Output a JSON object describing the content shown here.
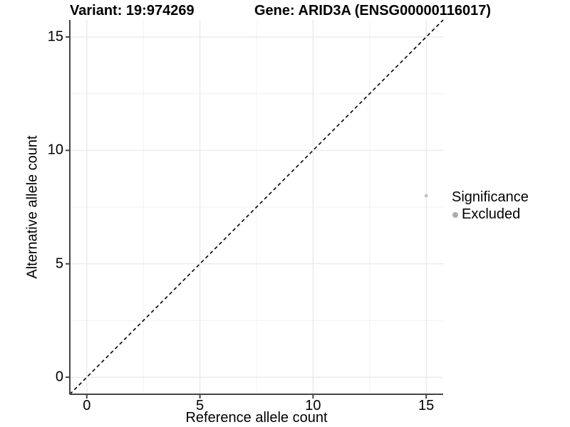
{
  "titles": {
    "variant": "Variant: 19:974269",
    "gene": "Gene: ARID3A (ENSG00000116017)"
  },
  "chart_data": {
    "type": "scatter",
    "xlabel": "Reference allele count",
    "ylabel": "Alternative allele count",
    "xlim": [
      -0.75,
      15.75
    ],
    "ylim": [
      -0.75,
      15.75
    ],
    "x_major_ticks": [
      0,
      5,
      10,
      15
    ],
    "y_major_ticks": [
      0,
      5,
      10,
      15
    ],
    "x_minor_ticks": [
      2.5,
      7.5,
      12.5
    ],
    "y_minor_ticks": [
      2.5,
      7.5,
      12.5
    ],
    "grid": true,
    "legend_position": "right",
    "series": [
      {
        "name": "Excluded",
        "points": [
          {
            "x": 15,
            "y": 8
          }
        ],
        "color": "#c0c0c0"
      }
    ],
    "abline": {
      "slope": 1,
      "intercept": 0,
      "style": "dashed",
      "color": "#000000"
    },
    "legend": {
      "title": "Significance",
      "entries": [
        {
          "label": "Excluded",
          "color": "#adadad"
        }
      ]
    }
  },
  "style_colors": {
    "axis_line": "#454545",
    "tick_mark": "#454545",
    "grid_major": "#e7e7e7",
    "grid_minor": "#f3f3f3",
    "background": "#ffffff"
  }
}
